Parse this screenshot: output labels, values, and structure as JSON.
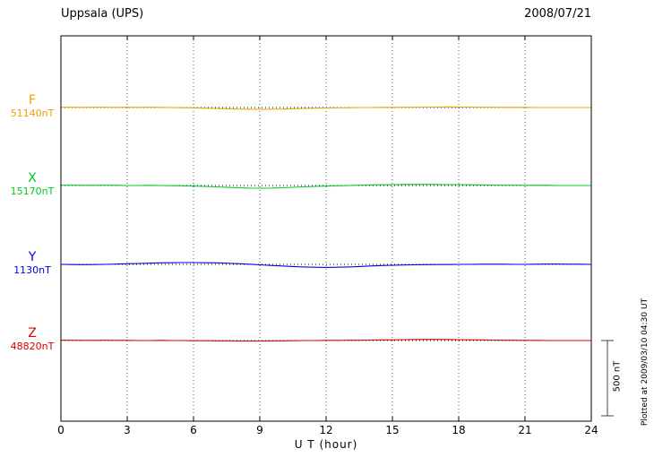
{
  "header": {
    "title": "Uppsala (UPS)",
    "date": "2008/07/21"
  },
  "axis": {
    "xlabel": "U T (hour)"
  },
  "side": {
    "scale_label": "500 nT",
    "plotted_at": "Plotted at 2009/03/10 04:30 UT"
  },
  "chart_data": {
    "type": "line",
    "title": "Uppsala (UPS) magnetogram",
    "date": "2008/07/21",
    "xlabel": "U T (hour)",
    "xlim": [
      0,
      24
    ],
    "x_ticks": [
      0,
      3,
      6,
      9,
      12,
      15,
      18,
      21,
      24
    ],
    "x_step_hours": 0.5,
    "grid": "vertical-dotted-at-3h, dotted-baseline-per-trace",
    "scale_bar_nT": 500,
    "series": [
      {
        "name": "F",
        "base_label": "51140nT",
        "base": 51140,
        "color": "#f0a000",
        "values": [
          51142,
          51142,
          51141,
          51142,
          51142,
          51141,
          51142,
          51141,
          51142,
          51141,
          51140,
          51139,
          51138,
          51136,
          51134,
          51132,
          51130,
          51129,
          51128,
          51129,
          51130,
          51132,
          51134,
          51136,
          51137,
          51138,
          51139,
          51140,
          51140,
          51141,
          51141,
          51142,
          51142,
          51143,
          51143,
          51144,
          51143,
          51143,
          51142,
          51142,
          51141,
          51141,
          51141,
          51140,
          51140,
          51140,
          51140,
          51140,
          51140
        ]
      },
      {
        "name": "X",
        "base_label": "15170nT",
        "base": 15170,
        "color": "#00cc22",
        "values": [
          15172,
          15172,
          15171,
          15171,
          15172,
          15171,
          15170,
          15170,
          15171,
          15170,
          15169,
          15168,
          15166,
          15164,
          15161,
          15158,
          15155,
          15153,
          15152,
          15153,
          15155,
          15158,
          15161,
          15164,
          15166,
          15168,
          15170,
          15172,
          15174,
          15175,
          15176,
          15177,
          15177,
          15178,
          15177,
          15176,
          15176,
          15175,
          15174,
          15173,
          15172,
          15172,
          15171,
          15171,
          15171,
          15170,
          15170,
          15170,
          15170
        ]
      },
      {
        "name": "Y",
        "base_label": "1130nT",
        "base": 1130,
        "color": "#0000ee",
        "values": [
          1130,
          1129,
          1128,
          1129,
          1130,
          1132,
          1134,
          1136,
          1138,
          1140,
          1141,
          1142,
          1142,
          1141,
          1140,
          1138,
          1135,
          1131,
          1127,
          1123,
          1119,
          1116,
          1113,
          1111,
          1110,
          1111,
          1113,
          1116,
          1119,
          1122,
          1124,
          1126,
          1127,
          1128,
          1129,
          1129,
          1130,
          1130,
          1131,
          1131,
          1131,
          1130,
          1130,
          1131,
          1132,
          1132,
          1131,
          1131,
          1130
        ]
      },
      {
        "name": "Z",
        "base_label": "48820nT",
        "base": 48820,
        "color": "#dd0000",
        "values": [
          48822,
          48822,
          48821,
          48821,
          48822,
          48821,
          48821,
          48820,
          48820,
          48821,
          48820,
          48820,
          48819,
          48819,
          48818,
          48818,
          48817,
          48817,
          48817,
          48818,
          48818,
          48819,
          48820,
          48820,
          48821,
          48821,
          48822,
          48822,
          48823,
          48824,
          48825,
          48826,
          48827,
          48828,
          48828,
          48827,
          48826,
          48825,
          48824,
          48823,
          48822,
          48822,
          48821,
          48821,
          48820,
          48820,
          48820,
          48820,
          48820
        ]
      }
    ]
  }
}
